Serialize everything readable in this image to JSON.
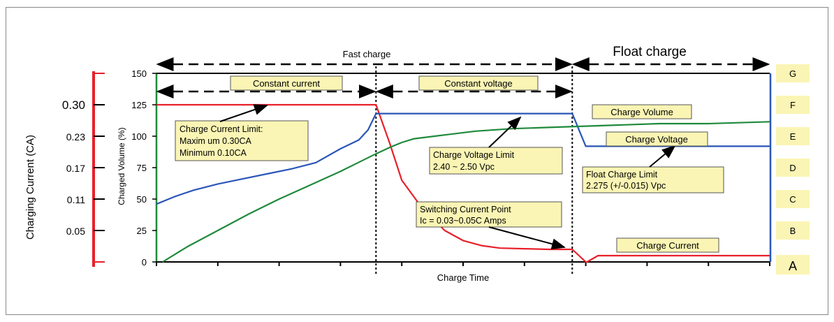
{
  "chart_data": {
    "type": "line",
    "xlabel": "Charge Time",
    "left_axis": {
      "label": "Charging Current (CA)",
      "ticks": [
        "0.30",
        "0.23",
        "0.17",
        "0.11",
        "0.05"
      ],
      "color": "#e8202a"
    },
    "y_axis": {
      "label": "Charged Volume (%)",
      "ylim": [
        0,
        150
      ],
      "ticks": [
        0,
        25,
        50,
        75,
        100,
        125,
        150
      ]
    },
    "x_axis": {
      "xlim": [
        0,
        100
      ],
      "ticks": [
        0,
        10,
        20,
        30,
        40,
        50,
        60,
        70,
        80,
        90,
        100
      ]
    },
    "right_axis": {
      "ticks": [
        "A",
        "B",
        "C",
        "D",
        "E",
        "F",
        "G"
      ],
      "color": "#2a56b8"
    },
    "phases": {
      "fast_charge": "Fast charge",
      "float_charge": "Float charge",
      "constant_current": "Constant current",
      "constant_voltage": "Constant voltage",
      "fast_end_x": 35.8,
      "cc_end_x": 35.8,
      "cv_end_x": 67.8
    },
    "series": [
      {
        "name": "Charge Current",
        "color": "#e8202a",
        "points": [
          [
            0,
            125
          ],
          [
            35.8,
            125
          ],
          [
            38,
            95
          ],
          [
            40,
            65
          ],
          [
            43,
            45
          ],
          [
            47,
            25
          ],
          [
            50,
            17
          ],
          [
            53,
            13
          ],
          [
            56,
            11
          ],
          [
            60,
            10.5
          ],
          [
            64,
            10
          ],
          [
            67.8,
            10
          ],
          [
            70,
            0
          ],
          [
            70.2,
            0
          ],
          [
            72,
            5
          ],
          [
            100,
            5
          ]
        ]
      },
      {
        "name": "Charge Voltage",
        "color": "#2a56b8",
        "points": [
          [
            0,
            46
          ],
          [
            3,
            52
          ],
          [
            6,
            57
          ],
          [
            10,
            62
          ],
          [
            14,
            66
          ],
          [
            18,
            70
          ],
          [
            22,
            74
          ],
          [
            26,
            79
          ],
          [
            30,
            90
          ],
          [
            33,
            97
          ],
          [
            34.5,
            105
          ],
          [
            35.8,
            118
          ],
          [
            67.8,
            118
          ],
          [
            70,
            92
          ],
          [
            100,
            92
          ]
        ]
      },
      {
        "name": "Charge Volume",
        "color": "#1f8a3c",
        "points": [
          [
            1,
            0
          ],
          [
            5,
            12
          ],
          [
            10,
            25
          ],
          [
            15,
            38
          ],
          [
            20,
            50
          ],
          [
            25,
            61
          ],
          [
            30,
            72
          ],
          [
            35.8,
            86
          ],
          [
            38,
            91
          ],
          [
            40,
            95
          ],
          [
            42,
            98
          ],
          [
            47,
            101
          ],
          [
            52,
            104
          ],
          [
            58,
            106
          ],
          [
            64,
            107
          ],
          [
            70,
            108
          ],
          [
            76,
            109
          ],
          [
            82,
            110
          ],
          [
            90,
            110
          ],
          [
            100,
            111.5
          ]
        ]
      }
    ],
    "annotations": {
      "current_limit": [
        "Charge Current Limit:",
        "Maxim um  0.30CA",
        "Minimum  0.10CA"
      ],
      "voltage_limit": [
        "Charge Voltage Limit",
        "2.40 ~ 2.50 Vpc"
      ],
      "switching_point": [
        "Switching Current Point",
        "Ic = 0.03~0.05C Amps"
      ],
      "float_limit": [
        "Float Charge Limit",
        "2.275 (+/-0.015) Vpc"
      ],
      "charge_volume": "Charge Volume",
      "charge_voltage": "Charge Voltage",
      "charge_current": "Charge Current"
    }
  }
}
